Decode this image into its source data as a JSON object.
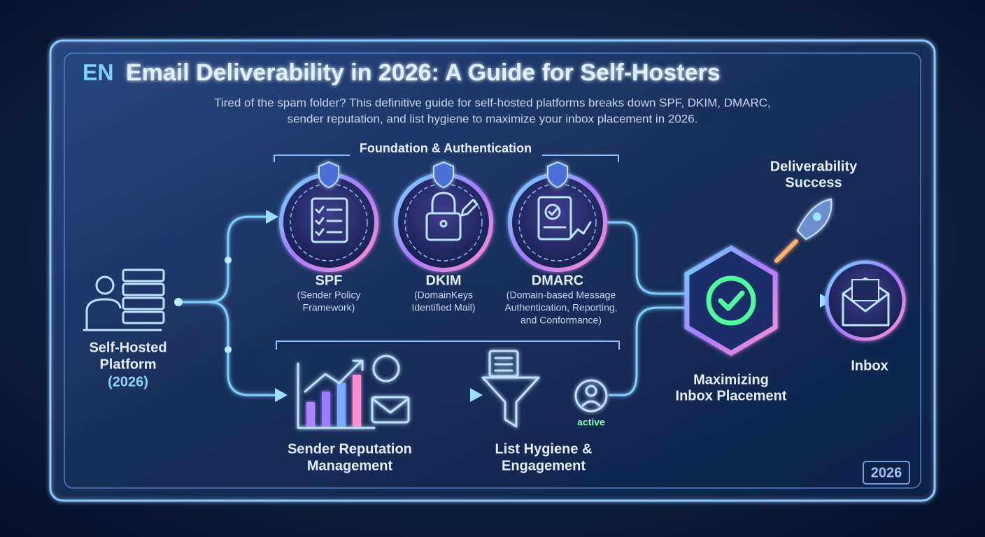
{
  "header": {
    "badge": "EN",
    "title": "Email Deliverability in 2026: A Guide for Self-Hosters",
    "subtitle_lines": [
      "Tired of the spam folder? This definitive guide for self-hosted platforms breaks down SPF, DKIM, DMARC,",
      "sender reputation, and list hygiene to maximize your inbox placement in 2026."
    ]
  },
  "source": {
    "label_lines": [
      "Self-Hosted",
      "Platform"
    ],
    "year": "(2026)"
  },
  "foundation": {
    "label": "Foundation & Authentication",
    "nodes": [
      {
        "label": "SPF",
        "detail_lines": [
          "(Sender Policy",
          "Framework)"
        ]
      },
      {
        "label": "DKIM",
        "detail_lines": [
          "(DomainKeys",
          "Identified Mail)"
        ]
      },
      {
        "label": "DMARC",
        "detail_lines": [
          "(Domain-based Message",
          "Authentication, Reporting,",
          "and Conformance)"
        ]
      }
    ]
  },
  "practices": {
    "nodes": [
      {
        "label_lines": [
          "Sender Reputation",
          "Management"
        ]
      },
      {
        "label_lines": [
          "List Hygiene &",
          "Engagement"
        ],
        "status": "active"
      }
    ]
  },
  "outcome": {
    "success_lines": [
      "Deliverability",
      "Success"
    ],
    "hub_lines": [
      "Maximizing",
      "Inbox Placement"
    ],
    "target": "Inbox"
  },
  "corner_badge": "2026"
}
